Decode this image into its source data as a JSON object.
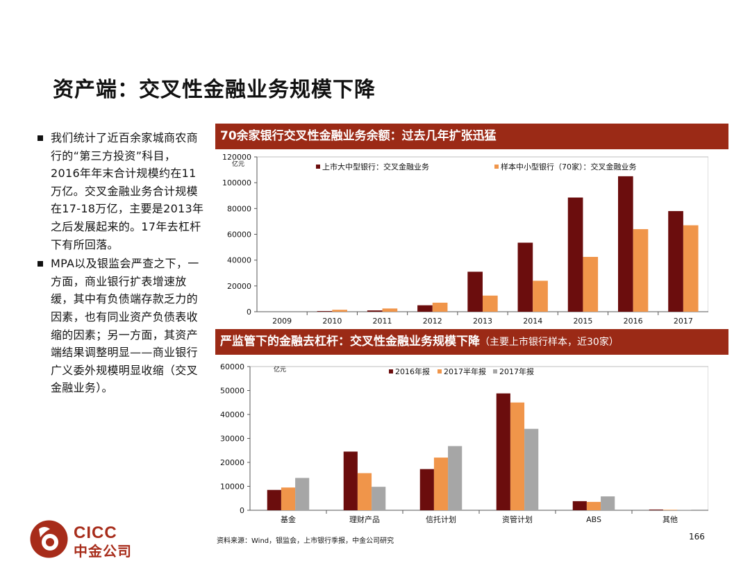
{
  "slide": {
    "title": "资产端：交叉性金融业务规模下降",
    "bullets": [
      "我们统计了近百余家城商农商行的“第三方投资”科目，2016年年末合计规模约在11万亿。交叉金融业务合计规模在17-18万亿，主要是2013年之后发展起来的。17年去杠杆下有所回落。",
      "MPA以及银监会严查之下，一方面，商业银行扩表增速放缓，其中有负债端存款乏力的因素，也有同业资产负债表收缩的因素；另一方面，其资产端结果调整明显——商业银行广义委外规模明显收缩（交叉金融业务）。"
    ],
    "source": "资料来源：Wind，银监会，上市银行季报，中金公司研究",
    "page_number": "166",
    "logo": {
      "en": "CICC",
      "cn": "中金公司"
    },
    "colors": {
      "band": "#9b2a16",
      "dark_red": "#6b0d0d",
      "orange": "#f0954a",
      "gray": "#a6a6a6"
    }
  },
  "chart_data": [
    {
      "type": "bar",
      "title": "70余家银行交叉性金融业务余额：过去几年扩张迅猛",
      "unit": "亿元",
      "categories": [
        "2009",
        "2010",
        "2011",
        "2012",
        "2013",
        "2014",
        "2015",
        "2016",
        "2017"
      ],
      "series": [
        {
          "name": "上市大中型银行：交叉金融业务",
          "color": "#6b0d0d",
          "values": [
            0,
            500,
            1000,
            5000,
            31000,
            53500,
            88500,
            105000,
            78000
          ]
        },
        {
          "name": "样本中小型银行（70家）：交叉金融业务",
          "color": "#f0954a",
          "values": [
            0,
            1500,
            2500,
            7000,
            12500,
            24000,
            42500,
            64000,
            67000
          ]
        }
      ],
      "ylim": [
        0,
        120000
      ],
      "yticks": [
        0,
        20000,
        40000,
        60000,
        80000,
        100000,
        120000
      ],
      "legend": "top"
    },
    {
      "type": "bar",
      "title": "严监管下的金融去杠杆：交叉性金融业务规模下降",
      "subtitle": "（主要上市银行样本，近30家）",
      "unit": "亿元",
      "categories": [
        "基金",
        "理财产品",
        "信托计划",
        "资管计划",
        "ABS",
        "其他"
      ],
      "series": [
        {
          "name": "2016年报",
          "color": "#6b0d0d",
          "values": [
            8500,
            24500,
            17200,
            48800,
            3800,
            300
          ]
        },
        {
          "name": "2017半年报",
          "color": "#f0954a",
          "values": [
            9500,
            15500,
            22000,
            45000,
            3500,
            200
          ]
        },
        {
          "name": "2017年报",
          "color": "#a6a6a6",
          "values": [
            13500,
            9800,
            26800,
            34000,
            5800,
            200
          ]
        }
      ],
      "ylim": [
        0,
        60000
      ],
      "yticks": [
        0,
        10000,
        20000,
        30000,
        40000,
        50000,
        60000
      ],
      "legend": "top"
    }
  ]
}
